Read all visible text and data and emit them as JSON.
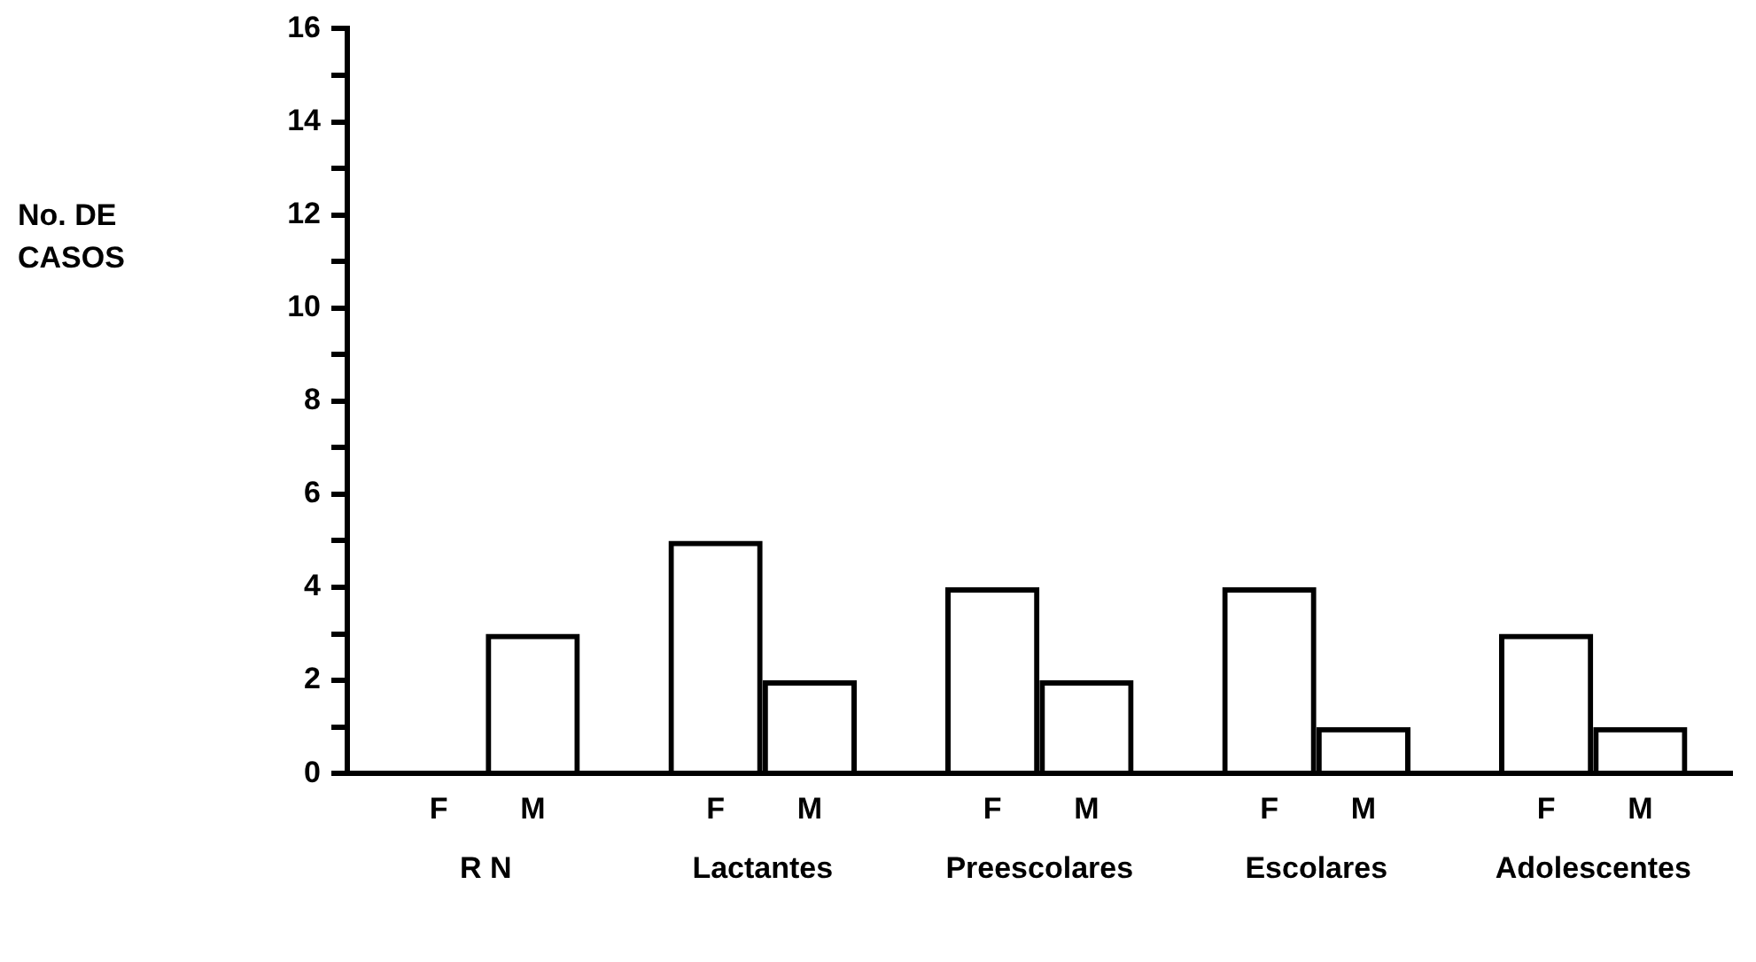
{
  "chart_data": {
    "type": "bar",
    "annotations": [
      "No. DE CASOS"
    ],
    "categories": [
      "R N",
      "Lactantes",
      "Preescolares",
      "Escolares",
      "Adolescentes"
    ],
    "series": [
      {
        "name": "F",
        "color": "#000000",
        "values": [
          0,
          5,
          4,
          4,
          3
        ]
      },
      {
        "name": "M",
        "color": "#000000",
        "values": [
          3,
          2,
          2,
          1,
          1
        ]
      }
    ],
    "ylim": [
      0,
      16
    ],
    "yticks": [
      0,
      {
        "value": 1,
        "label": null
      },
      2,
      {
        "value": 3,
        "label": null
      },
      4,
      {
        "value": 5,
        "label": null
      },
      6,
      {
        "value": 7,
        "label": null
      },
      8,
      {
        "value": 9,
        "label": null
      },
      10,
      {
        "value": 11,
        "label": null
      },
      12,
      {
        "value": 13,
        "label": null
      },
      14,
      {
        "value": 15,
        "label": null
      },
      16
    ]
  }
}
